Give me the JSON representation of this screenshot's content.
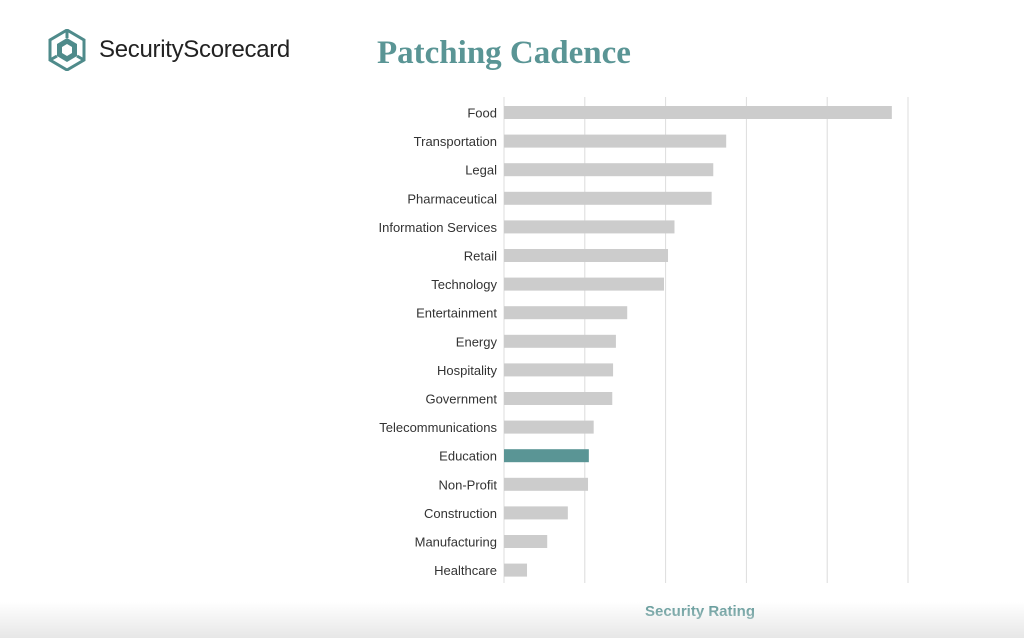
{
  "brand": {
    "name": "SecurityScorecard"
  },
  "chart_data": {
    "type": "bar",
    "orientation": "horizontal",
    "title": "Patching Cadence",
    "xlabel": "Security Rating",
    "ylabel": "",
    "categories": [
      "Food",
      "Transportation",
      "Legal",
      "Pharmaceutical",
      "Information Services",
      "Retail",
      "Technology",
      "Entertainment",
      "Energy",
      "Hospitality",
      "Government",
      "Telecommunications",
      "Education",
      "Non-Profit",
      "Construction",
      "Manufacturing",
      "Healthcare"
    ],
    "values": [
      96,
      55,
      51.8,
      51.4,
      42.2,
      40.6,
      39.6,
      30.5,
      27.7,
      27,
      26.8,
      22.2,
      21,
      20.8,
      15.8,
      10.7,
      5.7
    ],
    "xlim": [
      0,
      100
    ],
    "xticks_labeled": false,
    "gridlines": "vertical",
    "highlight_category": "Education",
    "colors": {
      "bar": "#cccccc",
      "highlight": "#5a9595",
      "grid": "#dcdcdc",
      "title": "#5a9595",
      "axis_label": "#5a9595"
    }
  }
}
